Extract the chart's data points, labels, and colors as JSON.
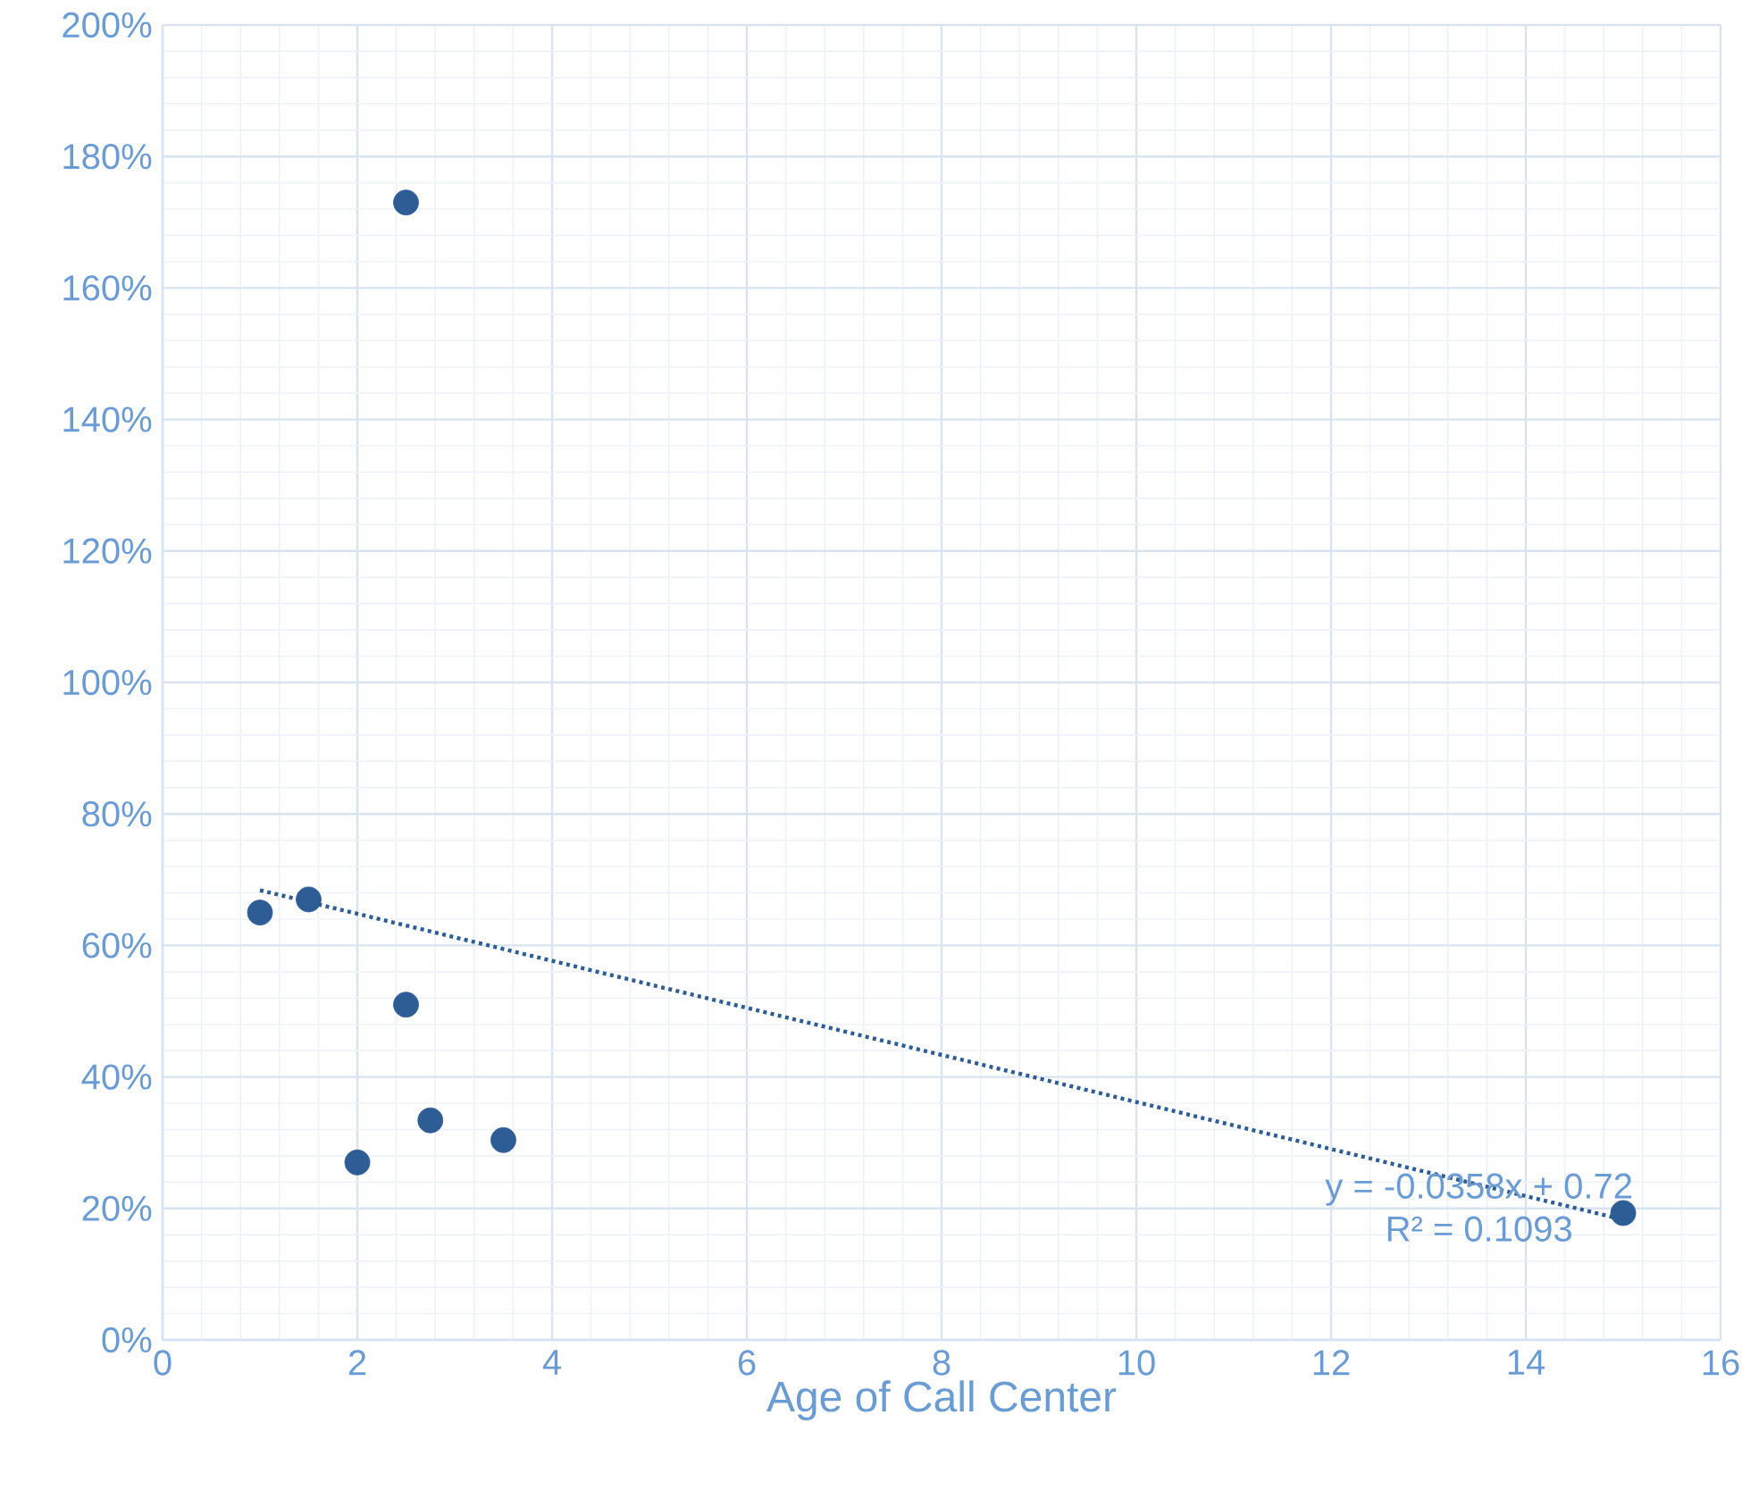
{
  "chart_data": {
    "type": "scatter",
    "xlabel": "Age of Call Center",
    "xlim": [
      0,
      16
    ],
    "xticks": [
      0,
      2,
      4,
      6,
      8,
      10,
      12,
      14,
      16
    ],
    "ylim": [
      0,
      2
    ],
    "yticks": [
      {
        "value": 0,
        "label": "0%"
      },
      {
        "value": 0.2,
        "label": "20%"
      },
      {
        "value": 0.4,
        "label": "40%"
      },
      {
        "value": 0.6,
        "label": "60%"
      },
      {
        "value": 0.8,
        "label": "80%"
      },
      {
        "value": 1,
        "label": "100%"
      },
      {
        "value": 1.2,
        "label": "120%"
      },
      {
        "value": 1.4,
        "label": "140%"
      },
      {
        "value": 1.6,
        "label": "160%"
      },
      {
        "value": 1.8,
        "label": "180%"
      },
      {
        "value": 2,
        "label": "200%"
      }
    ],
    "grid": true,
    "series": [
      {
        "color": "#2e5d95",
        "marker": "circle",
        "x": [
          1,
          1.5,
          2.5,
          2.5,
          2,
          2.75,
          3.5,
          15
        ],
        "values": [
          0.65,
          0.67,
          1.73,
          0.51,
          0.27,
          0.334,
          0.304,
          0.193
        ]
      },
      {
        "type": "line",
        "color": "#2e5d95",
        "marker": "none",
        "line_style": "dotted",
        "x": [
          1,
          15
        ],
        "values": [
          0.684,
          0.183
        ]
      }
    ],
    "annotations": [
      "y = -0.0358x + 0.72",
      "R² = 0.1093"
    ]
  }
}
